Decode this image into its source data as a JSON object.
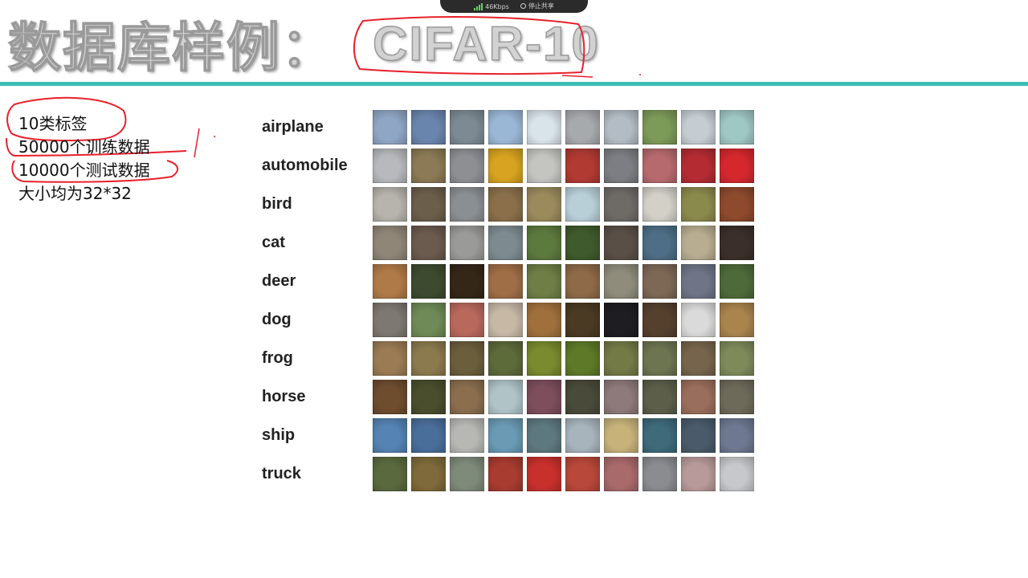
{
  "recorder": {
    "speed_text": "46Kbps",
    "stop_label": "停止共享"
  },
  "title": {
    "main": "数据库样例：",
    "dataset": "CIFAR-10"
  },
  "facts": [
    "10类标签",
    "50000个训练数据",
    "10000个测试数据",
    "大小均为32*32"
  ],
  "classes": [
    {
      "label": "airplane",
      "colors": [
        "#8fa6c4",
        "#6a85ad",
        "#7d8a93",
        "#9ab8d6",
        "#d9e3ea",
        "#a7aaad",
        "#b3bcc4",
        "#7c9a58",
        "#c5cdd3",
        "#9fc7c4"
      ]
    },
    {
      "label": "automobile",
      "colors": [
        "#b7b9bc",
        "#8b7a55",
        "#8d8f93",
        "#d7a320",
        "#c4c4c0",
        "#b13a33",
        "#7c7e83",
        "#b76a6e",
        "#b42c32",
        "#d4282e"
      ]
    },
    {
      "label": "bird",
      "colors": [
        "#b7b3ad",
        "#6b5e4a",
        "#8a8f93",
        "#8a6f4a",
        "#9b8a5c",
        "#b9cfd8",
        "#6e6a66",
        "#d3d0c8",
        "#8b8a4d",
        "#8d4a2c"
      ]
    },
    {
      "label": "cat",
      "colors": [
        "#8f8678",
        "#6b5a4e",
        "#9a9a98",
        "#7d8b90",
        "#5d7a3e",
        "#3f5a2c",
        "#5a4f46",
        "#4d6e86",
        "#b8ad90",
        "#3b2f2a"
      ]
    },
    {
      "label": "deer",
      "colors": [
        "#b07a48",
        "#3e4a30",
        "#352718",
        "#9f6e47",
        "#6f7e46",
        "#8e6a48",
        "#8f8c7c",
        "#7d6856",
        "#6f7486",
        "#4e6a3a"
      ]
    },
    {
      "label": "dog",
      "colors": [
        "#7e7872",
        "#6f8a56",
        "#b9685c",
        "#c7b8a6",
        "#a0703c",
        "#4a3a24",
        "#1d1d22",
        "#55402e",
        "#dadada",
        "#a9844d"
      ]
    },
    {
      "label": "frog",
      "colors": [
        "#9a7b54",
        "#8b7a4e",
        "#6b5e3c",
        "#5d6a3a",
        "#7a8a2e",
        "#5e7a28",
        "#737a46",
        "#6d7450",
        "#76654c",
        "#7e8a5a"
      ]
    },
    {
      "label": "horse",
      "colors": [
        "#6e4d2e",
        "#4a4e2c",
        "#8a6e4e",
        "#b0c4c8",
        "#7d4e5c",
        "#4a4a3a",
        "#8e7a7a",
        "#5c5e4a",
        "#9a6e5c",
        "#6e6a5a"
      ]
    },
    {
      "label": "ship",
      "colors": [
        "#5583b4",
        "#4a6e9a",
        "#b7b8b4",
        "#6a9ab4",
        "#5e7880",
        "#a8b4bc",
        "#c7b27a",
        "#3e6a7a",
        "#4a5a6a",
        "#6e7890"
      ]
    },
    {
      "label": "truck",
      "colors": [
        "#5a6a3e",
        "#7e6a3a",
        "#7e8a7a",
        "#a83c30",
        "#c8302c",
        "#b8483a",
        "#a86a6a",
        "#8a8c90",
        "#b89a9a",
        "#c6c8cc"
      ]
    }
  ]
}
